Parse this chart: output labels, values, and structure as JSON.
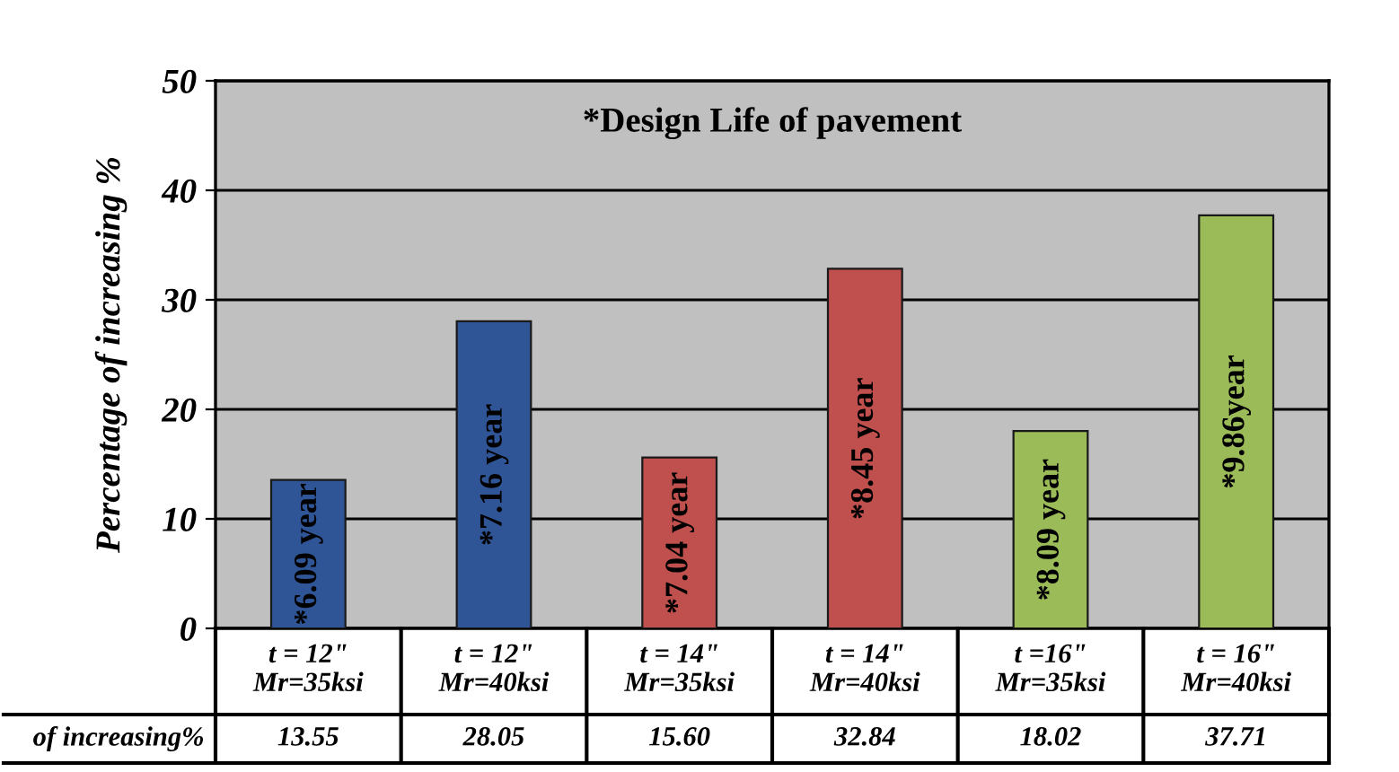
{
  "chart_data": {
    "type": "bar",
    "title": "*Design Life of pavement",
    "ylabel": "Percentage of increasing %",
    "categories": [
      "t = 12\"\nMr=35ksi",
      "t = 12\"\nMr=40ksi",
      "t = 14\"\nMr=35ksi",
      "t = 14\"\nMr=40ksi",
      "t =16\"\nMr=35ksi",
      "t = 16\"\nMr=40ksi"
    ],
    "values": [
      13.55,
      28.05,
      15.6,
      32.84,
      18.02,
      37.71
    ],
    "value_labels": [
      "13.55",
      "28.05",
      "15.60",
      "32.84",
      "18.02",
      "37.71"
    ],
    "colors": [
      "#2f5597",
      "#2f5597",
      "#c0504d",
      "#c0504d",
      "#9bbb59",
      "#9bbb59"
    ],
    "ylim": [
      0,
      50
    ],
    "yticks": [
      0,
      10,
      20,
      30,
      40,
      50
    ],
    "grid": "y",
    "annotations": [
      "of increasing%",
      "*6.09 year",
      "*7.16 year",
      "*7.04 year",
      "*8.45 year",
      "*8.09 year",
      "*9.86year"
    ]
  }
}
